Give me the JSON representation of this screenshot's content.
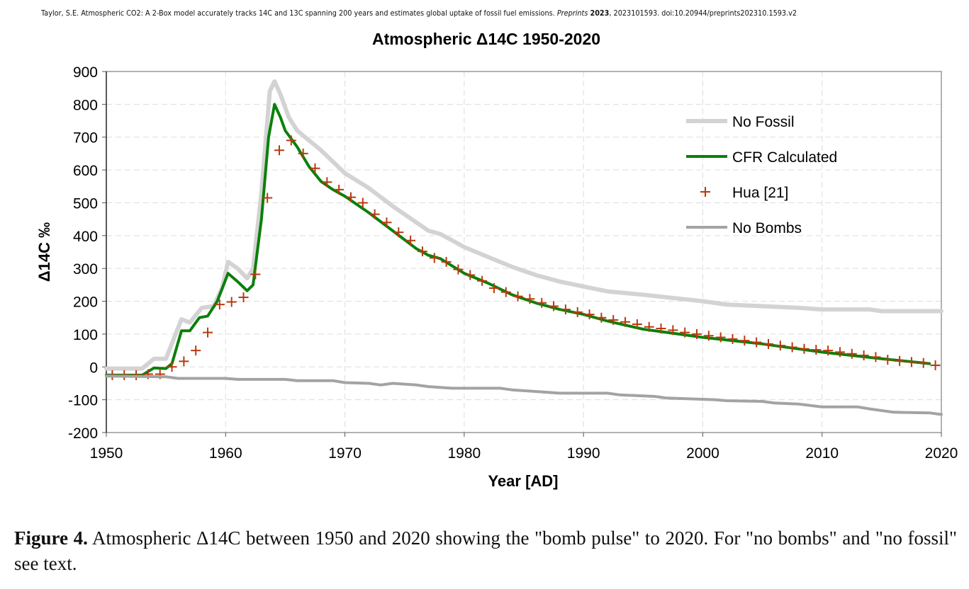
{
  "header": {
    "citation": "Taylor, S.E. Atmospheric CO2: A 2-Box model accurately tracks 14C and 13C spanning 200 years and estimates global uptake of fossil fuel emissions.",
    "journal": "Preprints",
    "year": "2023",
    "rest": ", 2023101593. doi:10.20944/preprints202310.1593.v2"
  },
  "caption": {
    "label": "Figure 4.",
    "text": " Atmospheric Δ14C between 1950 and 2020 showing the \"bomb pulse\" to 2020. For \"no bombs\" and \"no fossil\" see text."
  },
  "chart_data": {
    "type": "line",
    "title": "Atmospheric Δ14C 1950-2020",
    "xlabel": "Year [AD]",
    "ylabel": "Δ14C ‰",
    "xlim": [
      1950,
      2020
    ],
    "ylim": [
      -200,
      900
    ],
    "xticks": [
      "1950",
      "1960",
      "1970",
      "1980",
      "1990",
      "2000",
      "2010",
      "2020"
    ],
    "yticks": [
      "900",
      "800",
      "700",
      "600",
      "500",
      "400",
      "300",
      "200",
      "100",
      "0",
      "-100",
      "-200"
    ],
    "grid": true,
    "legend_position": "top-right",
    "series": [
      {
        "name": "No Fossil",
        "style": "line",
        "color": "#d3d3d3",
        "x": [
          1950,
          1953,
          1954,
          1955,
          1956.3,
          1957,
          1958,
          1959,
          1959.7,
          1960.2,
          1961,
          1961.8,
          1962.3,
          1963,
          1963.7,
          1964.1,
          1964.6,
          1965.3,
          1966,
          1968,
          1970,
          1972,
          1974,
          1976,
          1977,
          1978,
          1980,
          1982,
          1984,
          1986,
          1988,
          1990,
          1992,
          1995,
          2000,
          2002,
          2005,
          2008,
          2010,
          2014,
          2015,
          2020
        ],
        "y": [
          -5,
          -5,
          25,
          25,
          145,
          135,
          180,
          185,
          240,
          320,
          300,
          270,
          300,
          530,
          840,
          870,
          830,
          760,
          720,
          660,
          590,
          545,
          490,
          440,
          415,
          405,
          365,
          335,
          305,
          280,
          260,
          245,
          230,
          220,
          200,
          190,
          185,
          180,
          175,
          175,
          170,
          170
        ]
      },
      {
        "name": "CFR Calculated",
        "style": "line",
        "color": "#0a800a",
        "x": [
          1950,
          1953,
          1954,
          1955,
          1955.5,
          1956.3,
          1957,
          1957.8,
          1958.5,
          1959.3,
          1960.2,
          1961,
          1961.8,
          1962.3,
          1963,
          1963.6,
          1964.1,
          1964.6,
          1965,
          1966,
          1967,
          1968,
          1969,
          1970,
          1972,
          1974,
          1976,
          1977,
          1978,
          1980,
          1982,
          1984,
          1986,
          1988,
          1990,
          1992,
          1995,
          2000,
          2005,
          2010,
          2015,
          2019
        ],
        "y": [
          -25,
          -25,
          -3,
          -5,
          10,
          110,
          110,
          150,
          155,
          200,
          285,
          260,
          232,
          250,
          450,
          700,
          800,
          760,
          720,
          670,
          610,
          565,
          540,
          520,
          470,
          415,
          360,
          340,
          330,
          285,
          255,
          220,
          195,
          175,
          160,
          140,
          115,
          90,
          70,
          45,
          25,
          10
        ]
      },
      {
        "name": "Hua [21]",
        "style": "marker-plus",
        "color": "#b83a0e",
        "x": [
          1950.5,
          1951.5,
          1952.5,
          1953.5,
          1954.5,
          1955.5,
          1956.5,
          1957.5,
          1958.5,
          1959.5,
          1960.5,
          1961.5,
          1962.5,
          1963.5,
          1964.5,
          1965.5,
          1966.5,
          1967.5,
          1968.5,
          1969.5,
          1970.5,
          1971.5,
          1972.5,
          1973.5,
          1974.5,
          1975.5,
          1976.5,
          1977.5,
          1978.5,
          1979.5,
          1980.5,
          1981.5,
          1982.5,
          1983.5,
          1984.5,
          1985.5,
          1986.5,
          1987.5,
          1988.5,
          1989.5,
          1990.5,
          1991.5,
          1992.5,
          1993.5,
          1994.5,
          1995.5,
          1996.5,
          1997.5,
          1998.5,
          1999.5,
          2000.5,
          2001.5,
          2002.5,
          2003.5,
          2004.5,
          2005.5,
          2006.5,
          2007.5,
          2008.5,
          2009.5,
          2010.5,
          2011.5,
          2012.5,
          2013.5,
          2014.5,
          2015.5,
          2016.5,
          2017.5,
          2018.5,
          2019.5
        ],
        "y": [
          -25,
          -25,
          -25,
          -22,
          -22,
          0,
          17,
          50,
          105,
          190,
          198,
          212,
          282,
          515,
          660,
          690,
          650,
          605,
          563,
          540,
          517,
          500,
          465,
          440,
          410,
          385,
          352,
          332,
          320,
          297,
          280,
          262,
          240,
          228,
          215,
          207,
          195,
          185,
          175,
          167,
          160,
          150,
          143,
          137,
          130,
          122,
          117,
          112,
          105,
          100,
          95,
          90,
          85,
          80,
          75,
          70,
          65,
          60,
          55,
          52,
          50,
          45,
          40,
          35,
          30,
          22,
          18,
          15,
          12,
          5
        ]
      },
      {
        "name": "No Bombs",
        "style": "line",
        "color": "#a3a3a3",
        "x": [
          1950,
          1955,
          1956,
          1960,
          1961,
          1965,
          1966,
          1969,
          1970,
          1972,
          1973,
          1974,
          1976,
          1977,
          1979,
          1983,
          1984,
          1986,
          1988,
          1992,
          1993,
          1996,
          1997,
          2001,
          2002,
          2005,
          2006,
          2008,
          2010,
          2013,
          2014,
          2016,
          2019,
          2020
        ],
        "y": [
          -28,
          -30,
          -35,
          -35,
          -38,
          -38,
          -42,
          -42,
          -48,
          -50,
          -55,
          -50,
          -55,
          -60,
          -65,
          -65,
          -70,
          -75,
          -80,
          -80,
          -85,
          -90,
          -95,
          -100,
          -103,
          -105,
          -110,
          -113,
          -122,
          -122,
          -128,
          -138,
          -140,
          -145
        ]
      }
    ]
  }
}
